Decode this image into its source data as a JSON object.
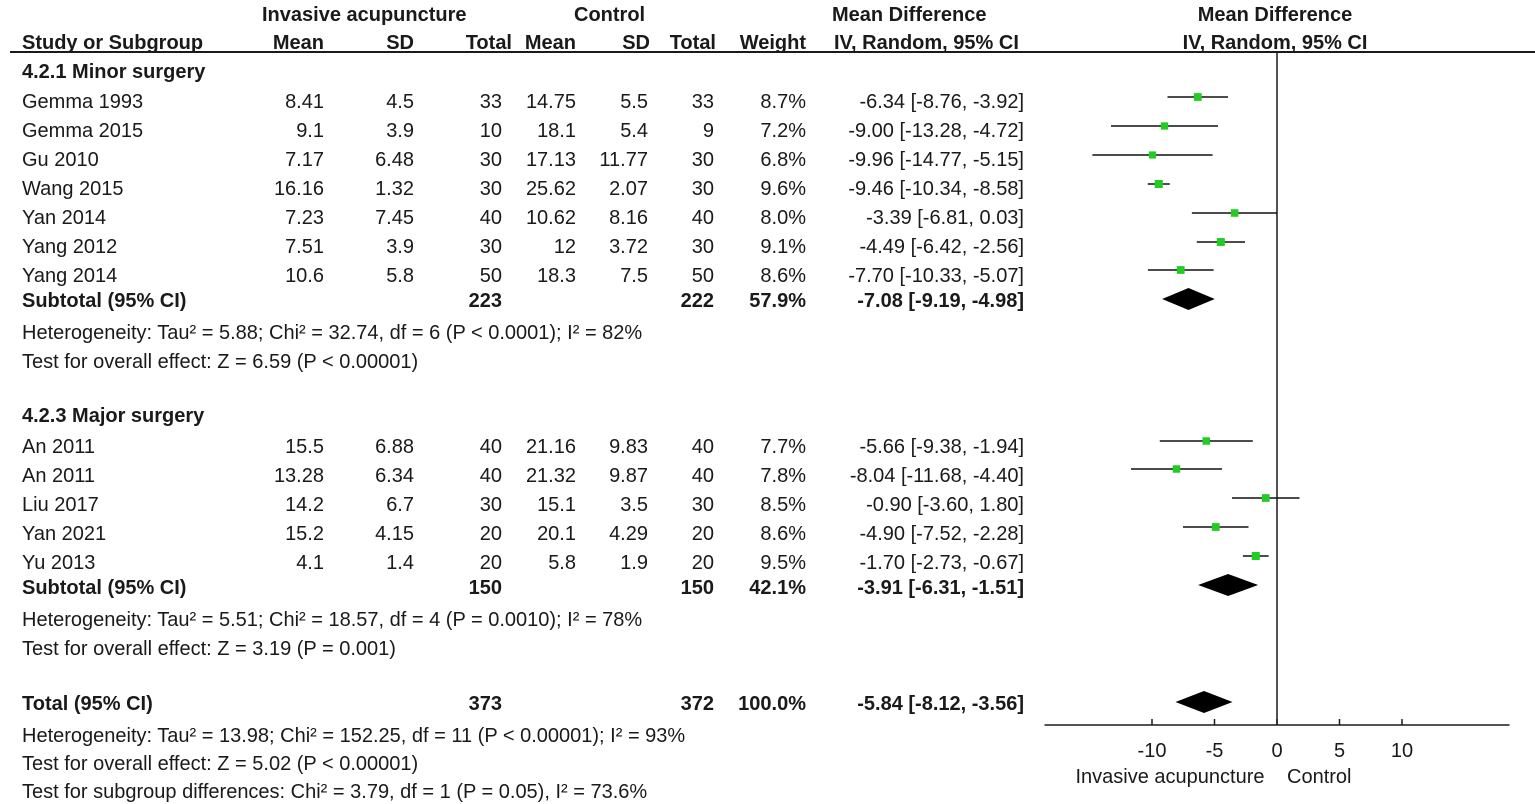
{
  "header": {
    "group_left": "Invasive acupuncture",
    "group_right": "Control",
    "md_title": "Mean Difference",
    "md_method": "IV, Random, 95% CI",
    "plot_title": "Mean Difference",
    "plot_method": "IV, Random, 95% CI",
    "col_study": "Study or Subgroup",
    "col_mean1": "Mean",
    "col_sd1": "SD",
    "col_total1": "Total",
    "col_mean2": "Mean",
    "col_sd2": "SD",
    "col_total2": "Total",
    "col_weight": "Weight"
  },
  "groups": [
    {
      "title": "4.2.1 Minor surgery",
      "studies": [
        {
          "name": "Gemma 1993",
          "mean1": "8.41",
          "sd1": "4.5",
          "total1": "33",
          "mean2": "14.75",
          "sd2": "5.5",
          "total2": "33",
          "weight": "8.7%",
          "ci": "-6.34 [-8.76, -3.92]"
        },
        {
          "name": "Gemma 2015",
          "mean1": "9.1",
          "sd1": "3.9",
          "total1": "10",
          "mean2": "18.1",
          "sd2": "5.4",
          "total2": "9",
          "weight": "7.2%",
          "ci": "-9.00 [-13.28, -4.72]"
        },
        {
          "name": "Gu 2010",
          "mean1": "7.17",
          "sd1": "6.48",
          "total1": "30",
          "mean2": "17.13",
          "sd2": "11.77",
          "total2": "30",
          "weight": "6.8%",
          "ci": "-9.96 [-14.77, -5.15]"
        },
        {
          "name": "Wang 2015",
          "mean1": "16.16",
          "sd1": "1.32",
          "total1": "30",
          "mean2": "25.62",
          "sd2": "2.07",
          "total2": "30",
          "weight": "9.6%",
          "ci": "-9.46 [-10.34, -8.58]"
        },
        {
          "name": "Yan 2014",
          "mean1": "7.23",
          "sd1": "7.45",
          "total1": "40",
          "mean2": "10.62",
          "sd2": "8.16",
          "total2": "40",
          "weight": "8.0%",
          "ci": "-3.39 [-6.81, 0.03]"
        },
        {
          "name": "Yang 2012",
          "mean1": "7.51",
          "sd1": "3.9",
          "total1": "30",
          "mean2": "12",
          "sd2": "3.72",
          "total2": "30",
          "weight": "9.1%",
          "ci": "-4.49 [-6.42, -2.56]"
        },
        {
          "name": "Yang 2014",
          "mean1": "10.6",
          "sd1": "5.8",
          "total1": "50",
          "mean2": "18.3",
          "sd2": "7.5",
          "total2": "50",
          "weight": "8.6%",
          "ci": "-7.70 [-10.33, -5.07]"
        }
      ],
      "subtotal": {
        "label": "Subtotal (95% CI)",
        "total1": "223",
        "total2": "222",
        "weight": "57.9%",
        "ci": "-7.08 [-9.19, -4.98]"
      },
      "heterogeneity": "Heterogeneity: Tau² = 5.88; Chi² = 32.74, df = 6 (P < 0.0001); I² = 82%",
      "overall": "Test for overall effect: Z = 6.59 (P < 0.00001)"
    },
    {
      "title": "4.2.3 Major surgery",
      "studies": [
        {
          "name": "An  2011",
          "mean1": "15.5",
          "sd1": "6.88",
          "total1": "40",
          "mean2": "21.16",
          "sd2": "9.83",
          "total2": "40",
          "weight": "7.7%",
          "ci": "-5.66 [-9.38, -1.94]"
        },
        {
          "name": "An 2011",
          "mean1": "13.28",
          "sd1": "6.34",
          "total1": "40",
          "mean2": "21.32",
          "sd2": "9.87",
          "total2": "40",
          "weight": "7.8%",
          "ci": "-8.04 [-11.68, -4.40]"
        },
        {
          "name": "Liu 2017",
          "mean1": "14.2",
          "sd1": "6.7",
          "total1": "30",
          "mean2": "15.1",
          "sd2": "3.5",
          "total2": "30",
          "weight": "8.5%",
          "ci": "-0.90 [-3.60, 1.80]"
        },
        {
          "name": "Yan 2021",
          "mean1": "15.2",
          "sd1": "4.15",
          "total1": "20",
          "mean2": "20.1",
          "sd2": "4.29",
          "total2": "20",
          "weight": "8.6%",
          "ci": "-4.90 [-7.52, -2.28]"
        },
        {
          "name": "Yu 2013",
          "mean1": "4.1",
          "sd1": "1.4",
          "total1": "20",
          "mean2": "5.8",
          "sd2": "1.9",
          "total2": "20",
          "weight": "9.5%",
          "ci": "-1.70 [-2.73, -0.67]"
        }
      ],
      "subtotal": {
        "label": "Subtotal (95% CI)",
        "total1": "150",
        "total2": "150",
        "weight": "42.1%",
        "ci": "-3.91 [-6.31, -1.51]"
      },
      "heterogeneity": "Heterogeneity: Tau² = 5.51; Chi² = 18.57, df = 4 (P = 0.0010); I² = 78%",
      "overall": "Test for overall effect: Z = 3.19 (P = 0.001)"
    }
  ],
  "total": {
    "label": "Total (95% CI)",
    "total1": "373",
    "total2": "372",
    "weight": "100.0%",
    "ci": "-5.84 [-8.12, -3.56]"
  },
  "footer": {
    "heterogeneity": "Heterogeneity: Tau² = 13.98; Chi² = 152.25, df = 11 (P < 0.00001); I² = 93%",
    "overall": "Test for overall effect: Z = 5.02 (P < 0.00001)",
    "subgroup": "Test for subgroup differences: Chi² = 3.79, df = 1 (P = 0.05), I² = 73.6%"
  },
  "colors": {
    "marker": "#22cc22",
    "diamond": "#000000",
    "line": "#1a1a1a"
  },
  "chart_data": {
    "type": "forest",
    "title": "Mean Difference",
    "subtitle": "IV, Random, 95% CI",
    "xlim": [
      -20,
      20
    ],
    "xticks": [
      -10,
      -5,
      0,
      5,
      10
    ],
    "xtick_labels": [
      "-10",
      "-5",
      "0",
      "5",
      "10"
    ],
    "favours_left": "Invasive acupuncture",
    "favours_right": "Control",
    "studies": [
      {
        "label": "Gemma 1993",
        "md": -6.34,
        "lo": -8.76,
        "hi": -3.92
      },
      {
        "label": "Gemma 2015",
        "md": -9.0,
        "lo": -13.28,
        "hi": -4.72
      },
      {
        "label": "Gu 2010",
        "md": -9.96,
        "lo": -14.77,
        "hi": -5.15
      },
      {
        "label": "Wang 2015",
        "md": -9.46,
        "lo": -10.34,
        "hi": -8.58
      },
      {
        "label": "Yan 2014",
        "md": -3.39,
        "lo": -6.81,
        "hi": 0.03
      },
      {
        "label": "Yang 2012",
        "md": -4.49,
        "lo": -6.42,
        "hi": -2.56
      },
      {
        "label": "Yang 2014",
        "md": -7.7,
        "lo": -10.33,
        "hi": -5.07
      },
      {
        "label": "An  2011",
        "md": -5.66,
        "lo": -9.38,
        "hi": -1.94
      },
      {
        "label": "An 2011",
        "md": -8.04,
        "lo": -11.68,
        "hi": -4.4
      },
      {
        "label": "Liu 2017",
        "md": -0.9,
        "lo": -3.6,
        "hi": 1.8
      },
      {
        "label": "Yan 2021",
        "md": -4.9,
        "lo": -7.52,
        "hi": -2.28
      },
      {
        "label": "Yu 2013",
        "md": -1.7,
        "lo": -2.73,
        "hi": -0.67
      }
    ],
    "summaries": [
      {
        "label": "Subtotal Minor surgery",
        "md": -7.08,
        "lo": -9.19,
        "hi": -4.98
      },
      {
        "label": "Subtotal Major surgery",
        "md": -3.91,
        "lo": -6.31,
        "hi": -1.51
      },
      {
        "label": "Total",
        "md": -5.84,
        "lo": -8.12,
        "hi": -3.56
      }
    ]
  }
}
